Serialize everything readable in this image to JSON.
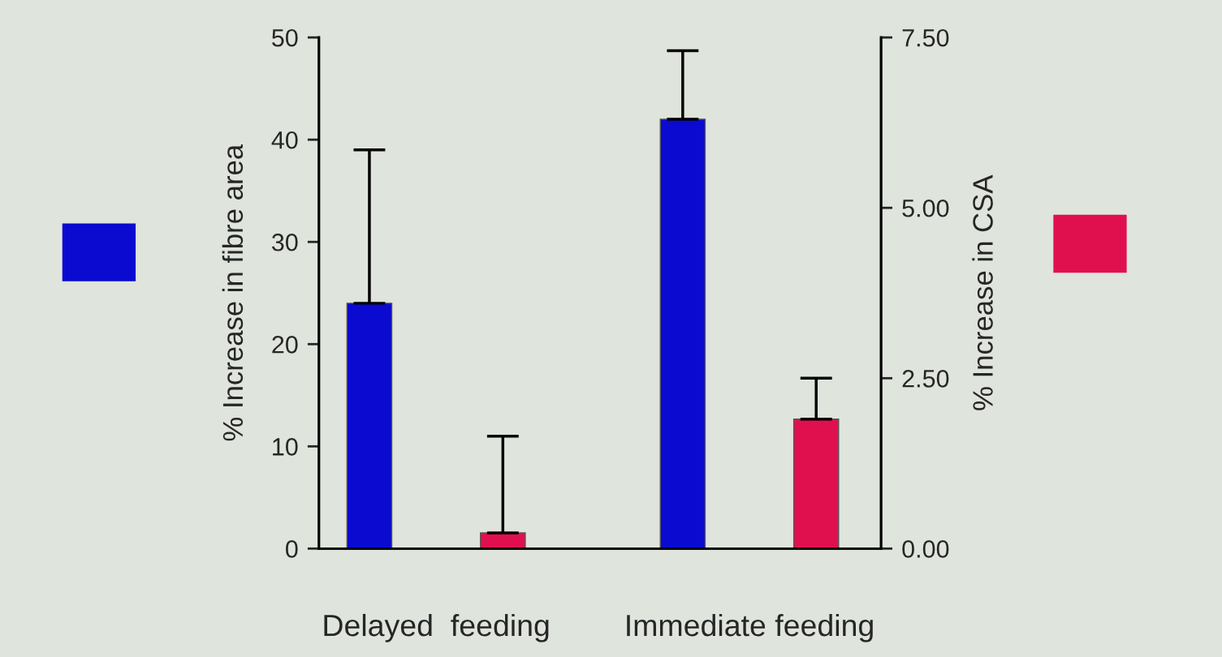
{
  "chart_data": {
    "type": "bar",
    "categories": [
      "Delayed  feeding",
      "Immediate feeding"
    ],
    "ylabel": "% Increase in fibre area",
    "y2label": "% Increase in CSA",
    "series": [
      {
        "color": "#0a0ad0",
        "values": [
          24,
          42
        ],
        "errors": [
          [
            24,
            39
          ],
          [
            42,
            48.7
          ]
        ]
      },
      {
        "color": "#e0104f",
        "values": [
          0.23,
          1.9
        ],
        "errors": [
          [
            0.23,
            1.65
          ],
          [
            1.9,
            2.5
          ]
        ],
        "axis": "y2"
      }
    ],
    "ylim": [
      0,
      50
    ],
    "yticks": [
      0,
      10,
      20,
      30,
      40,
      50
    ],
    "y2lim": [
      0,
      7.5
    ],
    "y2ticks": [
      {
        "value": 0,
        "label": "0.00"
      },
      {
        "value": 2.5,
        "label": "2.50"
      },
      {
        "value": 5,
        "label": "5.00"
      },
      {
        "value": 7.5,
        "label": "7.50"
      }
    ],
    "grid": false,
    "legend": false
  }
}
